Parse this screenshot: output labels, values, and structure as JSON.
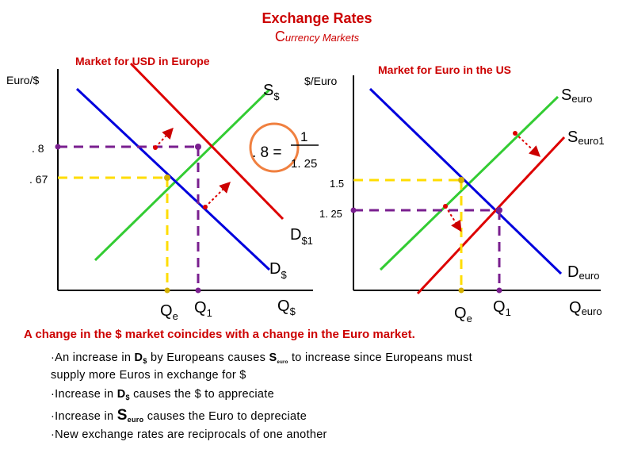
{
  "title": "Exchange Rates",
  "subtitle_initial": "C",
  "subtitle_rest": "urrency Markets",
  "left_panel": {
    "heading": "Market for USD in Europe",
    "y_axis_label": "Euro/$",
    "tick_high": ". 8",
    "tick_low": ". 67",
    "supply_label": "S",
    "supply_sub": "$",
    "demand_label": "D",
    "demand_sub": "$",
    "demand_new_label": "D",
    "demand_new_sub": "$1",
    "q_e_label": "Q",
    "q_e_sub": "e",
    "q_1_label": "Q",
    "q_1_sub": "1",
    "x_axis_label": "Q",
    "x_axis_sub": "$"
  },
  "right_panel": {
    "heading": "Market for Euro in the US",
    "y_axis_label": "$/Euro",
    "tick_high": "1.5",
    "tick_low": "1. 25",
    "supply_label": "S",
    "supply_sub": "euro",
    "supply_new_label": "S",
    "supply_new_sub": "euro1",
    "demand_label": "D",
    "demand_sub": "euro",
    "q_e_label": "Q",
    "q_e_sub": "e",
    "q_1_label": "Q",
    "q_1_sub": "1",
    "x_axis_label": "Q",
    "x_axis_sub": "euro"
  },
  "formula": {
    "lhs": ". 8 =",
    "numerator": "1",
    "denominator": "1. 25"
  },
  "headline": "A change in the $ market coincides with a change in the Euro market.",
  "bullets": {
    "b1_line1_prefix": "·An increase in ",
    "b1_D": "D",
    "b1_D_sub": "$",
    "b1_line1_middle": " by Europeans causes ",
    "b1_S": "S",
    "b1_S_sub": "euro",
    "b1_line1_suffix": " to increase since Europeans must",
    "b1_line2": "supply more Euros in exchange for $",
    "b2_prefix": "·Increase in ",
    "b2_D": "D",
    "b2_D_sub": "$",
    "b2_suffix": " causes the $ to appreciate",
    "b3_prefix": "·Increase in ",
    "b3_S": "S",
    "b3_S_sub": "euro",
    "b3_suffix": " causes the Euro to depreciate",
    "b4": "·New exchange rates are reciprocals of one another"
  },
  "colors": {
    "supply": "#33cc33",
    "demand": "#0000dd",
    "shifted": "#dd0000",
    "guide_yellow": "#ffdd00",
    "guide_purple": "#7a1f8f",
    "title_red": "#cc0000"
  }
}
